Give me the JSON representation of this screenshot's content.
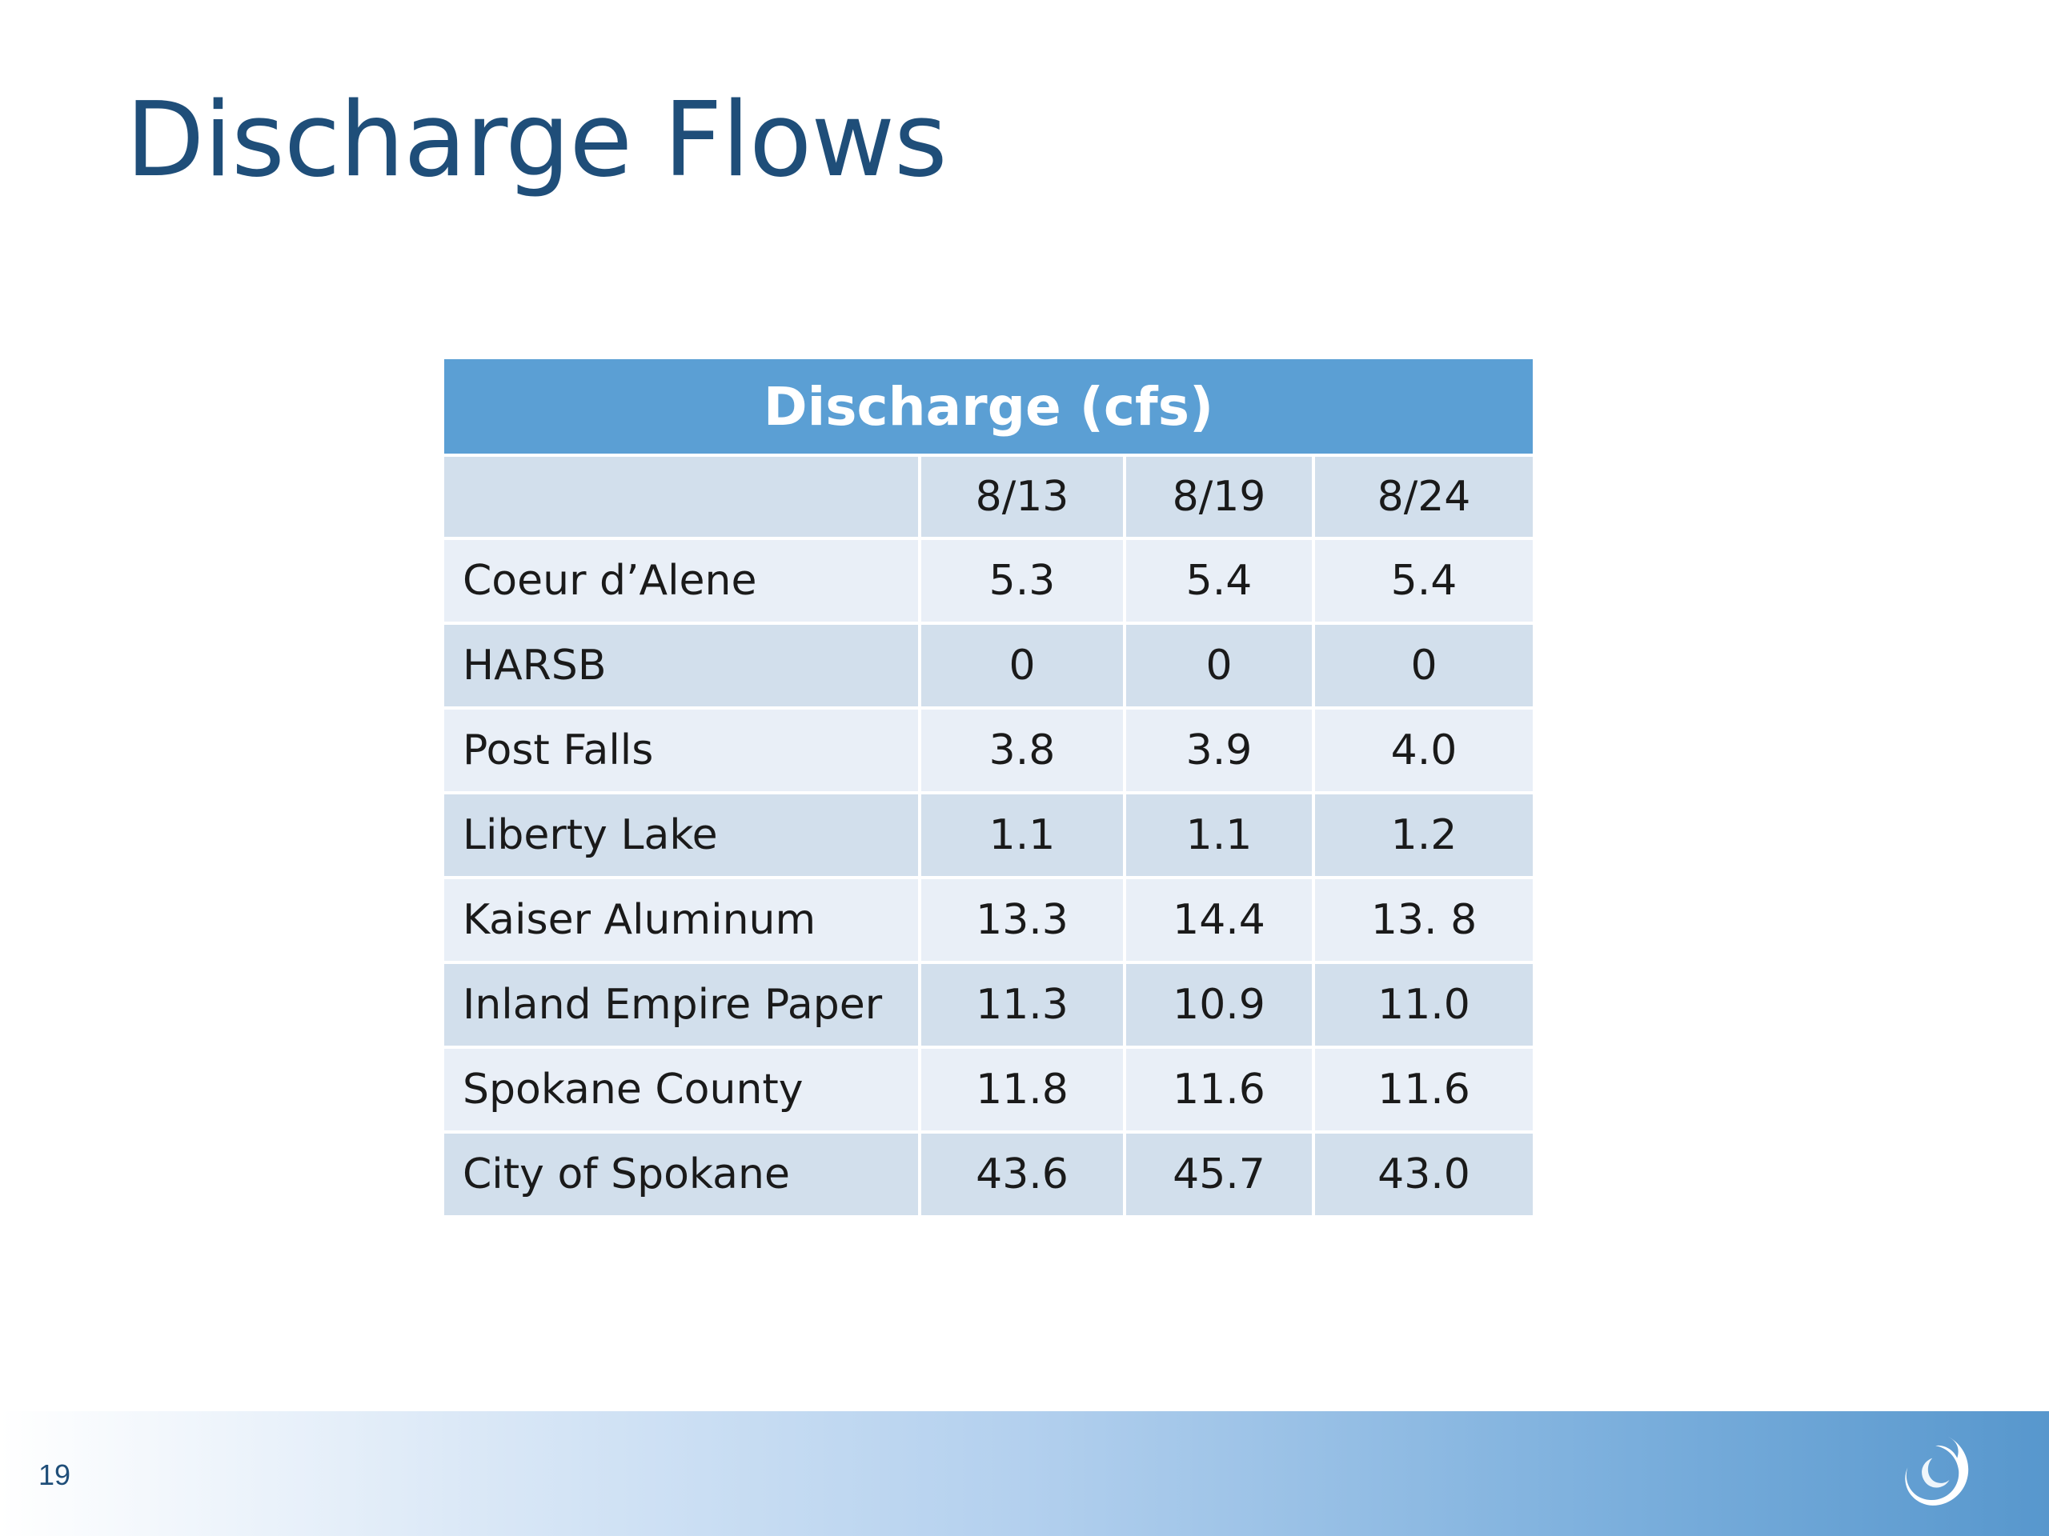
{
  "slide": {
    "title": "Discharge Flows",
    "page_number": "19"
  },
  "table": {
    "header": "Discharge (cfs)",
    "columns": [
      "8/13",
      "8/19",
      "8/24"
    ],
    "rows": [
      {
        "name": "Coeur d’Alene",
        "values": [
          "5.3",
          "5.4",
          "5.4"
        ]
      },
      {
        "name": "HARSB",
        "values": [
          "0",
          "0",
          "0"
        ]
      },
      {
        "name": "Post Falls",
        "values": [
          "3.8",
          "3.9",
          "4.0"
        ]
      },
      {
        "name": "Liberty Lake",
        "values": [
          "1.1",
          "1.1",
          "1.2"
        ]
      },
      {
        "name": "Kaiser Aluminum",
        "values": [
          "13.3",
          "14.4",
          "13. 8"
        ]
      },
      {
        "name": "Inland Empire Paper",
        "values": [
          "11.3",
          "10.9",
          "11.0"
        ]
      },
      {
        "name": "Spokane County",
        "values": [
          "11.8",
          "11.6",
          "11.6"
        ]
      },
      {
        "name": "City of Spokane",
        "values": [
          "43.6",
          "45.7",
          "43.0"
        ]
      }
    ]
  },
  "colors": {
    "title": "#1f4e79",
    "header_fill": "#5b9fd4",
    "row_dark": "#d2dfec",
    "row_light": "#e9eff7"
  },
  "icons": {
    "logo": "swirl-logo-icon"
  }
}
